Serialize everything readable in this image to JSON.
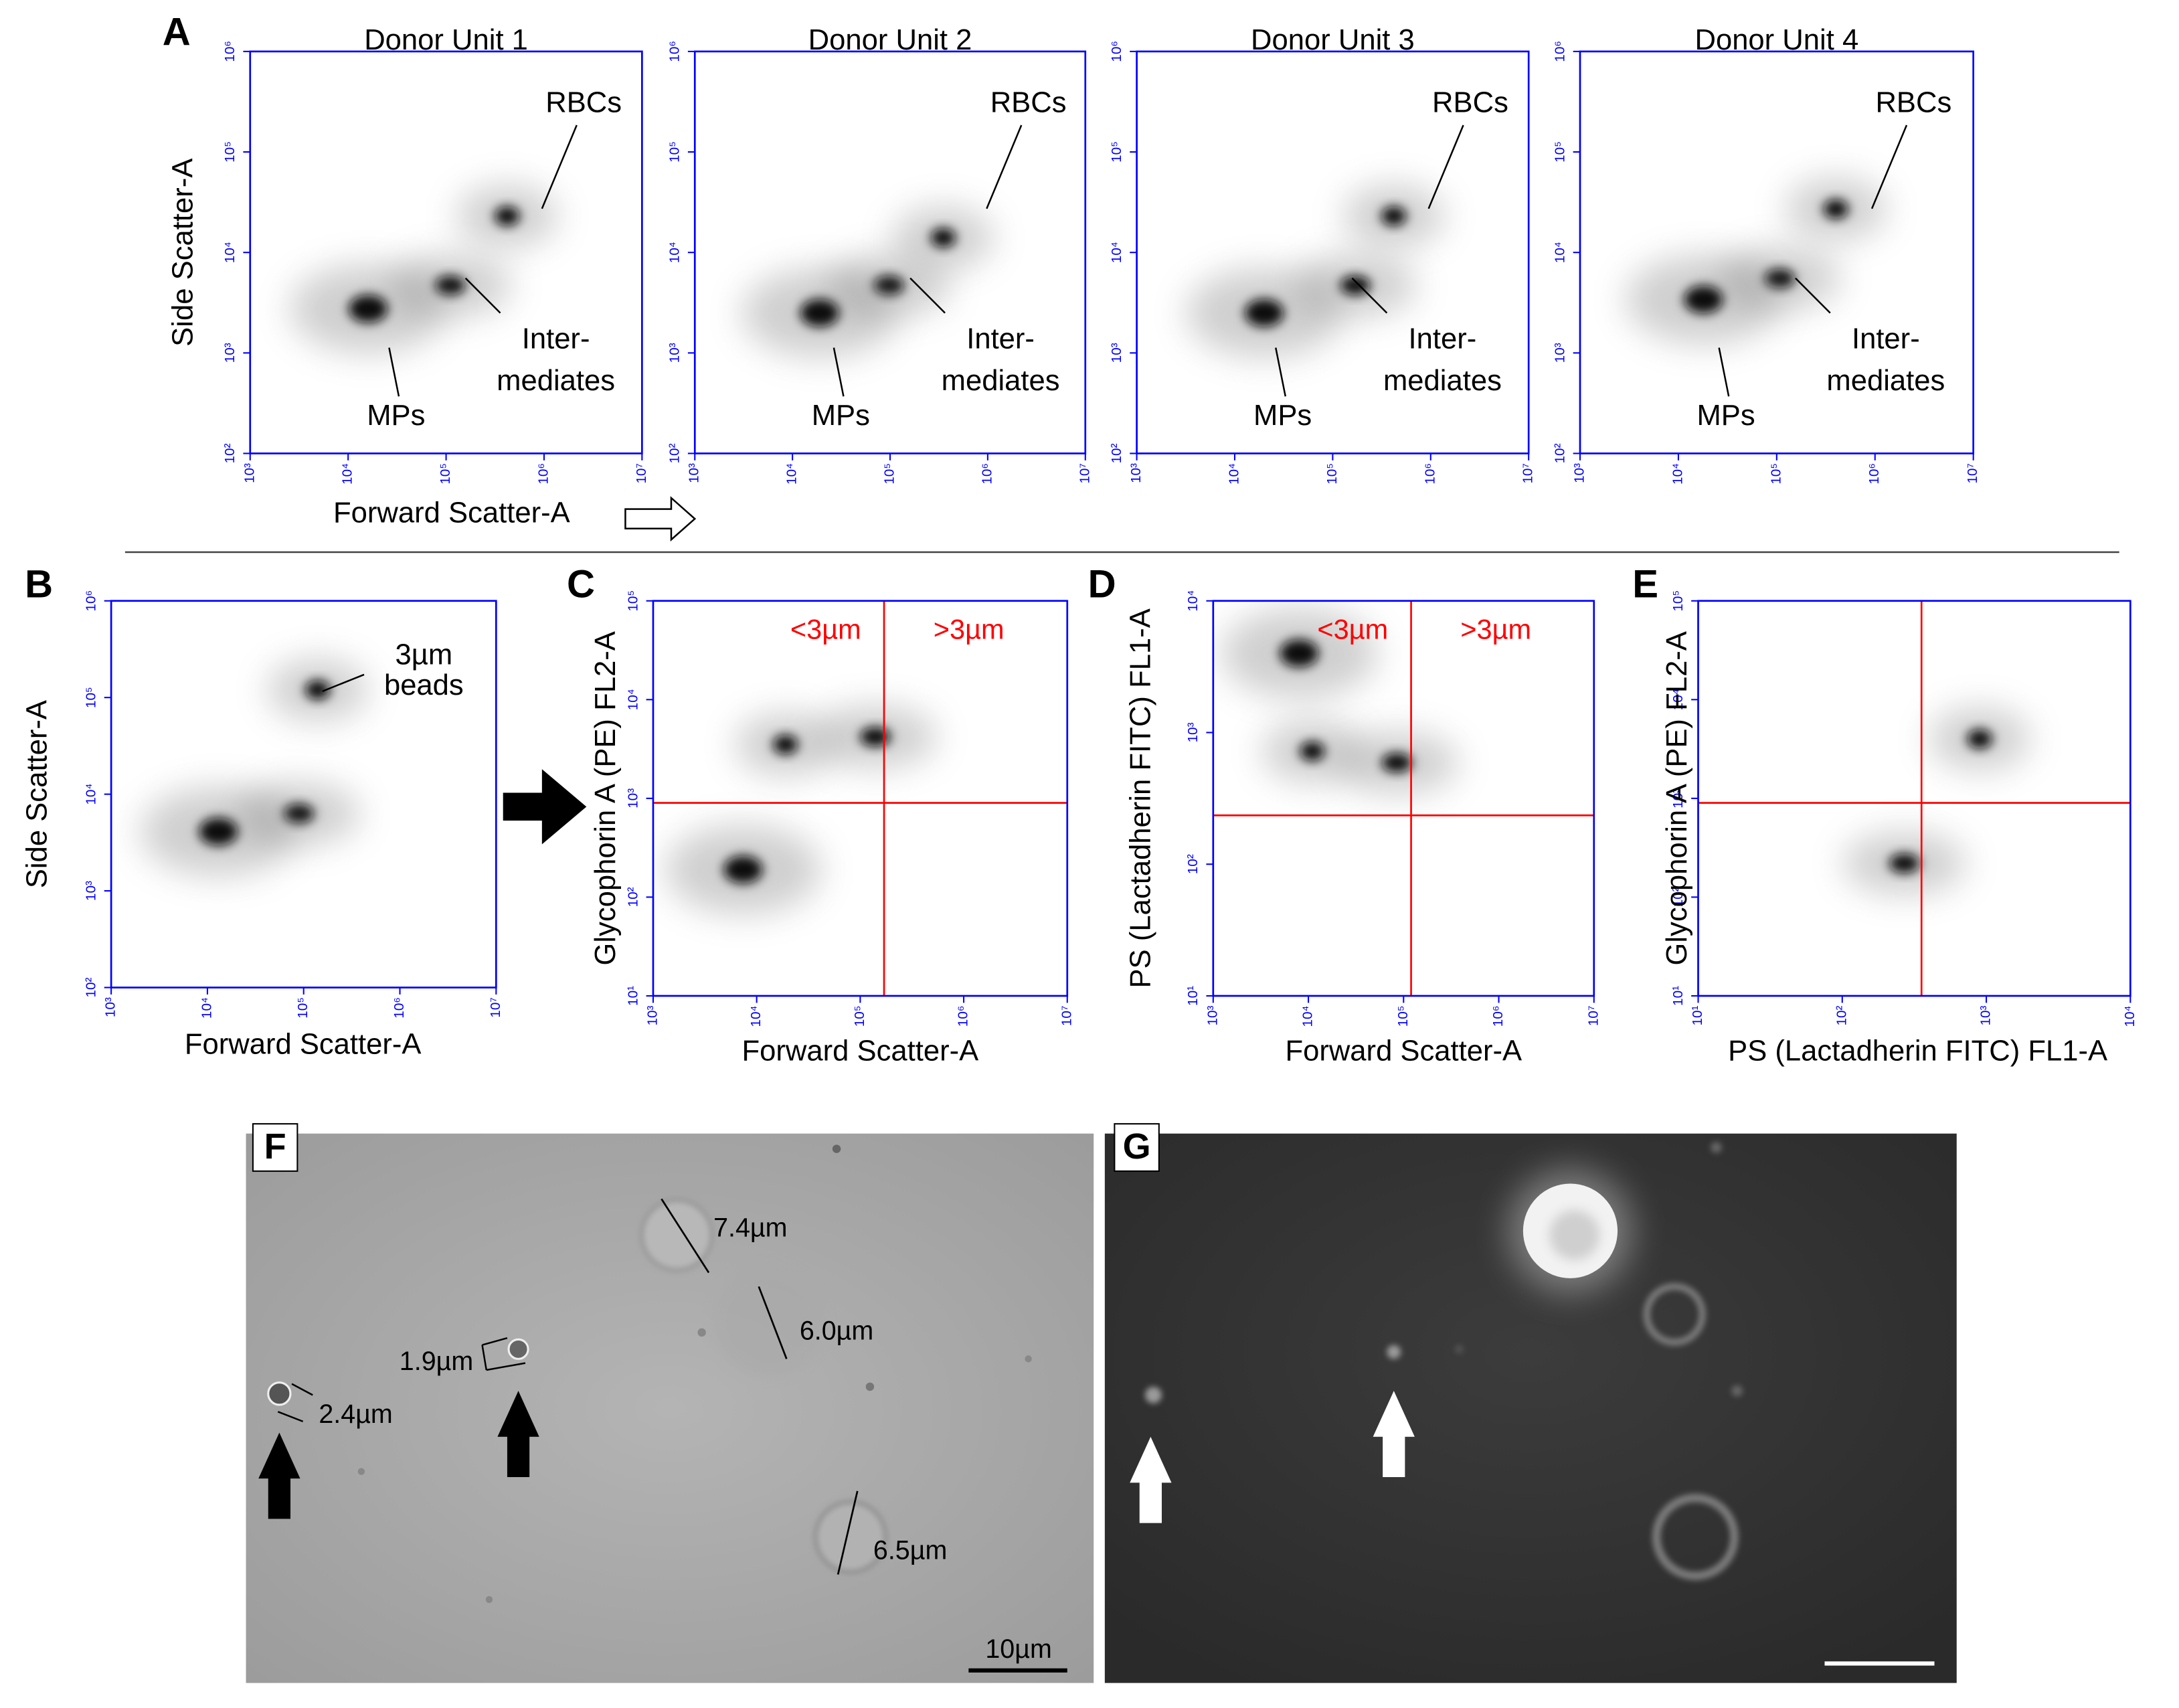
{
  "chart_data": [
    {
      "type": "scatter",
      "panel": "A",
      "title": "Donor Unit 1",
      "xlabel": "Forward Scatter-A",
      "ylabel": "Side Scatter-A",
      "log_x": true,
      "log_y": true,
      "axis_color": "#0000ff",
      "color": "#111111",
      "xlim": [
        1000,
        10000000
      ],
      "ylim": [
        100,
        1000000
      ],
      "xticks": [
        {
          "value": 1000,
          "label": "10³"
        },
        {
          "value": 10000,
          "label": "10⁴"
        },
        {
          "value": 100000,
          "label": "10⁵"
        },
        {
          "value": 1000000,
          "label": "10⁶"
        },
        {
          "value": 10000000,
          "label": "10⁷"
        }
      ],
      "yticks": [
        {
          "value": 100,
          "label": "10²"
        },
        {
          "value": 1000,
          "label": "10³"
        },
        {
          "value": 10000,
          "label": "10⁴"
        },
        {
          "value": 100000,
          "label": "10⁵"
        },
        {
          "value": 1000000,
          "label": "10⁶"
        }
      ],
      "x": [
        420000,
        110000,
        16000
      ],
      "values": [
        23000,
        4700,
        2750
      ],
      "annotations": [
        "RBCs",
        "Inter-",
        "mediates",
        "MPs"
      ]
    },
    {
      "type": "scatter",
      "title": "Donor Unit 2",
      "log_x": true,
      "log_y": true,
      "axis_color": "#0000ff",
      "color": "#111111",
      "xlim": [
        1000,
        10000000
      ],
      "ylim": [
        100,
        1000000
      ],
      "xticks": [
        {
          "value": 1000,
          "label": "10³"
        },
        {
          "value": 10000,
          "label": "10⁴"
        },
        {
          "value": 100000,
          "label": "10⁵"
        },
        {
          "value": 1000000,
          "label": "10⁶"
        },
        {
          "value": 10000000,
          "label": "10⁷"
        }
      ],
      "yticks": [
        {
          "value": 100,
          "label": "10²"
        },
        {
          "value": 1000,
          "label": "10³"
        },
        {
          "value": 10000,
          "label": "10⁴"
        },
        {
          "value": 100000,
          "label": "10⁵"
        },
        {
          "value": 1000000,
          "label": "10⁶"
        }
      ],
      "x": [
        350000,
        97000,
        19000
      ],
      "values": [
        14000,
        4700,
        2500
      ],
      "annotations": [
        "RBCs",
        "Inter-",
        "mediates",
        "MPs"
      ]
    },
    {
      "type": "scatter",
      "title": "Donor Unit 3",
      "log_x": true,
      "log_y": true,
      "axis_color": "#0000ff",
      "color": "#111111",
      "xlim": [
        1000,
        10000000
      ],
      "ylim": [
        100,
        1000000
      ],
      "xticks": [
        {
          "value": 1000,
          "label": "10³"
        },
        {
          "value": 10000,
          "label": "10⁴"
        },
        {
          "value": 100000,
          "label": "10⁵"
        },
        {
          "value": 1000000,
          "label": "10⁶"
        },
        {
          "value": 10000000,
          "label": "10⁷"
        }
      ],
      "yticks": [
        {
          "value": 100,
          "label": "10²"
        },
        {
          "value": 1000,
          "label": "10³"
        },
        {
          "value": 10000,
          "label": "10⁴"
        },
        {
          "value": 100000,
          "label": "10⁵"
        },
        {
          "value": 1000000,
          "label": "10⁶"
        }
      ],
      "x": [
        420000,
        170000,
        20000
      ],
      "values": [
        23000,
        4700,
        2500
      ],
      "annotations": [
        "RBCs",
        "Inter-",
        "mediates",
        "MPs"
      ]
    },
    {
      "type": "scatter",
      "title": "Donor Unit 4",
      "log_x": true,
      "log_y": true,
      "axis_color": "#0000ff",
      "color": "#111111",
      "xlim": [
        1000,
        10000000
      ],
      "ylim": [
        100,
        1000000
      ],
      "xticks": [
        {
          "value": 1000,
          "label": "10³"
        },
        {
          "value": 10000,
          "label": "10⁴"
        },
        {
          "value": 100000,
          "label": "10⁵"
        },
        {
          "value": 1000000,
          "label": "10⁶"
        },
        {
          "value": 10000000,
          "label": "10⁷"
        }
      ],
      "yticks": [
        {
          "value": 100,
          "label": "10²"
        },
        {
          "value": 1000,
          "label": "10³"
        },
        {
          "value": 10000,
          "label": "10⁴"
        },
        {
          "value": 100000,
          "label": "10⁵"
        },
        {
          "value": 1000000,
          "label": "10⁶"
        }
      ],
      "x": [
        400000,
        107000,
        18000
      ],
      "values": [
        27000,
        5500,
        3400
      ],
      "annotations": [
        "RBCs",
        "Inter-",
        "mediates",
        "MPs"
      ]
    },
    {
      "type": "scatter",
      "panel": "B",
      "xlabel": "Forward Scatter-A",
      "ylabel": "Side Scatter-A",
      "log_x": true,
      "log_y": true,
      "axis_color": "#0000ff",
      "color": "#111111",
      "xlim": [
        1000,
        10000000
      ],
      "ylim": [
        100,
        1000000
      ],
      "xticks": [
        {
          "value": 1000,
          "label": "10³"
        },
        {
          "value": 10000,
          "label": "10⁴"
        },
        {
          "value": 100000,
          "label": "10⁵"
        },
        {
          "value": 1000000,
          "label": "10⁶"
        },
        {
          "value": 10000000,
          "label": "10⁷"
        }
      ],
      "yticks": [
        {
          "value": 100,
          "label": "10²"
        },
        {
          "value": 1000,
          "label": "10³"
        },
        {
          "value": 10000,
          "label": "10⁴"
        },
        {
          "value": 100000,
          "label": "10⁵"
        },
        {
          "value": 1000000,
          "label": "10⁶"
        }
      ],
      "x": [
        140000,
        89000,
        13000
      ],
      "values": [
        120000,
        6300,
        4100
      ],
      "annotations": [
        "3µm",
        "beads"
      ]
    },
    {
      "type": "scatter",
      "panel": "C",
      "xlabel": "Forward Scatter-A",
      "ylabel": "Glycophorin A (PE) FL2-A",
      "log_x": true,
      "log_y": true,
      "axis_color": "#0000ff",
      "color": "#111111",
      "xlim": [
        1000,
        10000000
      ],
      "ylim": [
        10,
        100000
      ],
      "xticks": [
        {
          "value": 1000,
          "label": "10³"
        },
        {
          "value": 10000,
          "label": "10⁴"
        },
        {
          "value": 100000,
          "label": "10⁵"
        },
        {
          "value": 1000000,
          "label": "10⁶"
        },
        {
          "value": 10000000,
          "label": "10⁷"
        }
      ],
      "yticks": [
        {
          "value": 10,
          "label": "10¹"
        },
        {
          "value": 100,
          "label": "10²"
        },
        {
          "value": 1000,
          "label": "10³"
        },
        {
          "value": 10000,
          "label": "10⁴"
        },
        {
          "value": 100000,
          "label": "10⁵"
        }
      ],
      "x": [
        19000,
        140000,
        7400
      ],
      "values": [
        3500,
        4200,
        190
      ],
      "gate_x": 170000,
      "gate_y": 900,
      "gate_color": "#ff0000",
      "gate_labels": [
        "<3µm",
        ">3µm"
      ]
    },
    {
      "type": "scatter",
      "panel": "D",
      "xlabel": "Forward Scatter-A",
      "ylabel": "PS (Lactadherin FITC) FL1-A",
      "log_x": true,
      "log_y": true,
      "axis_color": "#0000ff",
      "color": "#111111",
      "xlim": [
        1000,
        10000000
      ],
      "ylim": [
        10,
        10000
      ],
      "xticks": [
        {
          "value": 1000,
          "label": "10³"
        },
        {
          "value": 10000,
          "label": "10⁴"
        },
        {
          "value": 100000,
          "label": "10⁵"
        },
        {
          "value": 1000000,
          "label": "10⁶"
        },
        {
          "value": 10000000,
          "label": "10⁷"
        }
      ],
      "yticks": [
        {
          "value": 10,
          "label": "10¹"
        },
        {
          "value": 100,
          "label": "10²"
        },
        {
          "value": 1000,
          "label": "10³"
        },
        {
          "value": 10000,
          "label": "10⁴"
        }
      ],
      "x": [
        11000,
        85000,
        8000
      ],
      "values": [
        720,
        590,
        4000
      ],
      "gate_x": 120000,
      "gate_y": 235,
      "gate_color": "#ff0000",
      "gate_labels": [
        "<3µm",
        ">3µm"
      ]
    },
    {
      "type": "scatter",
      "panel": "E",
      "xlabel": "PS (Lactadherin FITC) FL1-A",
      "ylabel": "Glycophorin A (PE) FL2-A",
      "log_x": true,
      "log_y": true,
      "axis_color": "#0000ff",
      "color": "#111111",
      "xlim": [
        10,
        10000
      ],
      "ylim": [
        10,
        100000
      ],
      "xticks": [
        {
          "value": 10,
          "label": "10¹"
        },
        {
          "value": 100,
          "label": "10²"
        },
        {
          "value": 1000,
          "label": "10³"
        },
        {
          "value": 10000,
          "label": "10⁴"
        }
      ],
      "yticks": [
        {
          "value": 10,
          "label": "10¹"
        },
        {
          "value": 100,
          "label": "10²"
        },
        {
          "value": 1000,
          "label": "10³"
        },
        {
          "value": 10000,
          "label": "10⁴"
        },
        {
          "value": 100000,
          "label": "10⁵"
        }
      ],
      "x": [
        900,
        270
      ],
      "values": [
        4000,
        220
      ],
      "gate_x": 355,
      "gate_y": 900,
      "gate_color": "#ff0000"
    }
  ],
  "images": {
    "F": {
      "panel": "F",
      "labels": [
        "7.4µm",
        "6.0µm",
        "1.9µm",
        "2.4µm",
        "6.5µm"
      ],
      "scale_bar": "10µm"
    },
    "G": {
      "panel": "G"
    }
  }
}
